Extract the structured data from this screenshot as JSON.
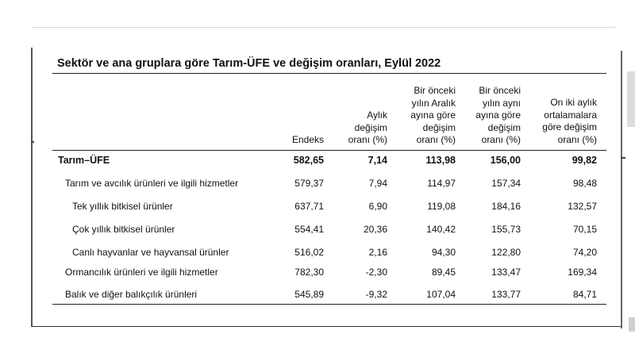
{
  "title": "Sektör ve ana gruplara göre Tarım-ÜFE ve değişim oranları, Eylül 2022",
  "columns": [
    "Endeks",
    "Aylık\ndeğişim\noranı (%)",
    "Bir önceki\nyılın Aralık\nayına göre\ndeğişim\noranı (%)",
    "Bir önceki\nyılın aynı\nayına göre\ndeğişim\noranı (%)",
    "On iki aylık\nortalamalara\ngöre değişim\noranı (%)"
  ],
  "rows": [
    {
      "label": "Tarım–ÜFE",
      "values": [
        "582,65",
        "7,14",
        "113,98",
        "156,00",
        "99,82"
      ]
    },
    {
      "label": "Tarım ve avcılık ürünleri ve ilgili hizmetler",
      "values": [
        "579,37",
        "7,94",
        "114,97",
        "157,34",
        "98,48"
      ]
    },
    {
      "label": "Tek yıllık bitkisel ürünler",
      "values": [
        "637,71",
        "6,90",
        "119,08",
        "184,16",
        "132,57"
      ]
    },
    {
      "label": "Çok yıllık bitkisel ürünler",
      "values": [
        "554,41",
        "20,36",
        "140,42",
        "155,73",
        "70,15"
      ]
    },
    {
      "label": "Canlı hayvanlar ve hayvansal ürünler",
      "values": [
        "516,02",
        "2,16",
        "94,30",
        "122,80",
        "74,20"
      ]
    },
    {
      "label": "Ormancılık ürünleri ve ilgili hizmetler",
      "values": [
        "782,30",
        "-2,30",
        "89,45",
        "133,47",
        "169,34"
      ]
    },
    {
      "label": "Balık ve diğer balıkçılık ürünleri",
      "values": [
        "545,89",
        "-9,32",
        "107,04",
        "133,77",
        "84,71"
      ]
    }
  ]
}
